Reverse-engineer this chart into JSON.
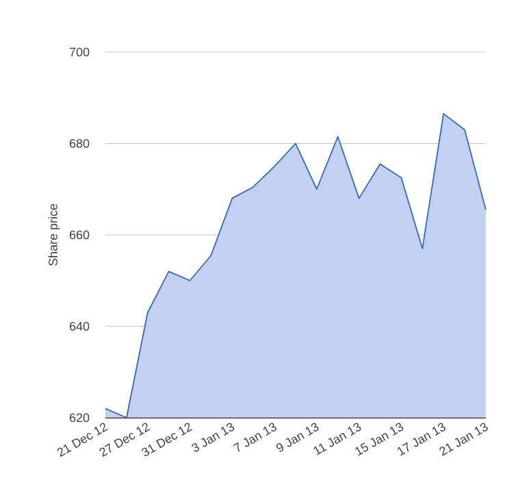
{
  "chart_data": {
    "type": "area",
    "ylabel": "Share price",
    "categories": [
      "21 Dec 12",
      null,
      "27 Dec 12",
      null,
      "31 Dec 12",
      null,
      "3 Jan 13",
      null,
      "7 Jan 13",
      null,
      "9 Jan 13",
      null,
      "11 Jan 13",
      null,
      "15 Jan 13",
      null,
      "17 Jan 13",
      null,
      "21 Jan 13"
    ],
    "values": [
      622,
      620,
      643,
      652,
      650,
      655.5,
      668,
      670.5,
      675,
      680,
      670,
      681.5,
      668,
      675.5,
      672.5,
      657,
      686.5,
      683,
      665.5
    ],
    "color": "#3366cc",
    "ylim": [
      620,
      700
    ],
    "yticks": [
      620,
      640,
      660,
      680,
      700
    ],
    "grid": "y"
  }
}
